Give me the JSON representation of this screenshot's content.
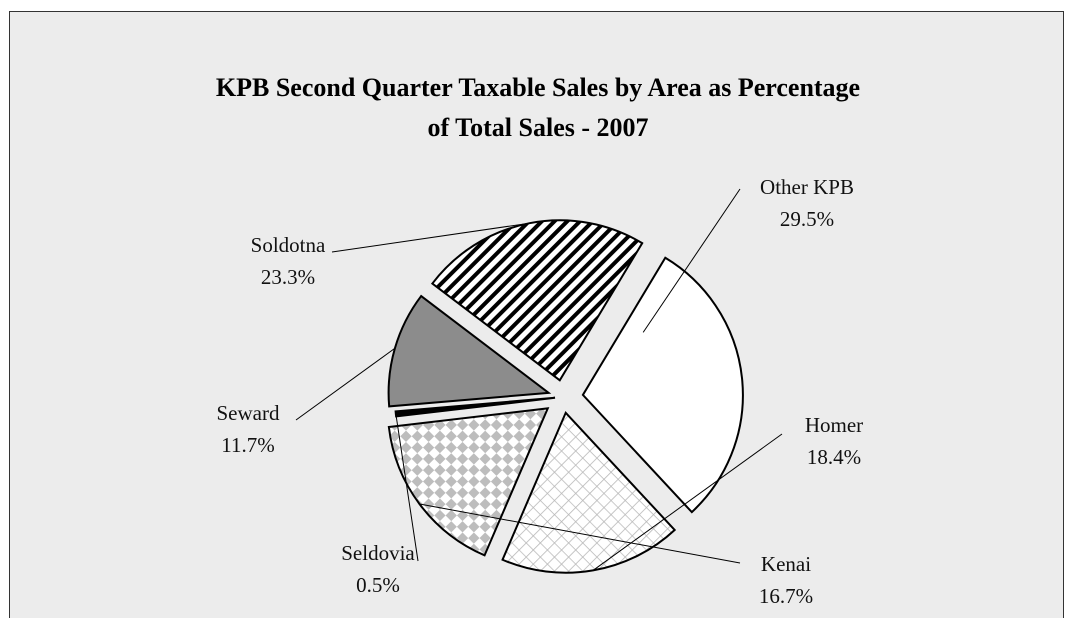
{
  "chart_data": {
    "type": "pie",
    "title": "KPB Second Quarter Taxable Sales by Area as Percentage of Total Sales - 2007",
    "title_lines": [
      "KPB Second Quarter Taxable Sales by Area as Percentage",
      "of Total Sales - 2007"
    ],
    "slices": [
      {
        "name": "Other KPB",
        "value": 29.5,
        "label": "29.5%",
        "fill": "solid",
        "color": "#ffffff"
      },
      {
        "name": "Homer",
        "value": 18.4,
        "label": "18.4%",
        "fill": "fine-crosshatch",
        "color": "#d4d4d4"
      },
      {
        "name": "Kenai",
        "value": 16.7,
        "label": "16.7%",
        "fill": "checker",
        "color": "#bdbdbd"
      },
      {
        "name": "Seldovia",
        "value": 0.5,
        "label": "0.5%",
        "fill": "solid",
        "color": "#000000"
      },
      {
        "name": "Seward",
        "value": 11.7,
        "label": "11.7%",
        "fill": "solid",
        "color": "#8c8c8c"
      },
      {
        "name": "Soldotna",
        "value": 23.3,
        "label": "23.3%",
        "fill": "diagonal-stripes",
        "color": "#000000"
      }
    ],
    "exploded": true,
    "legend": "none"
  }
}
